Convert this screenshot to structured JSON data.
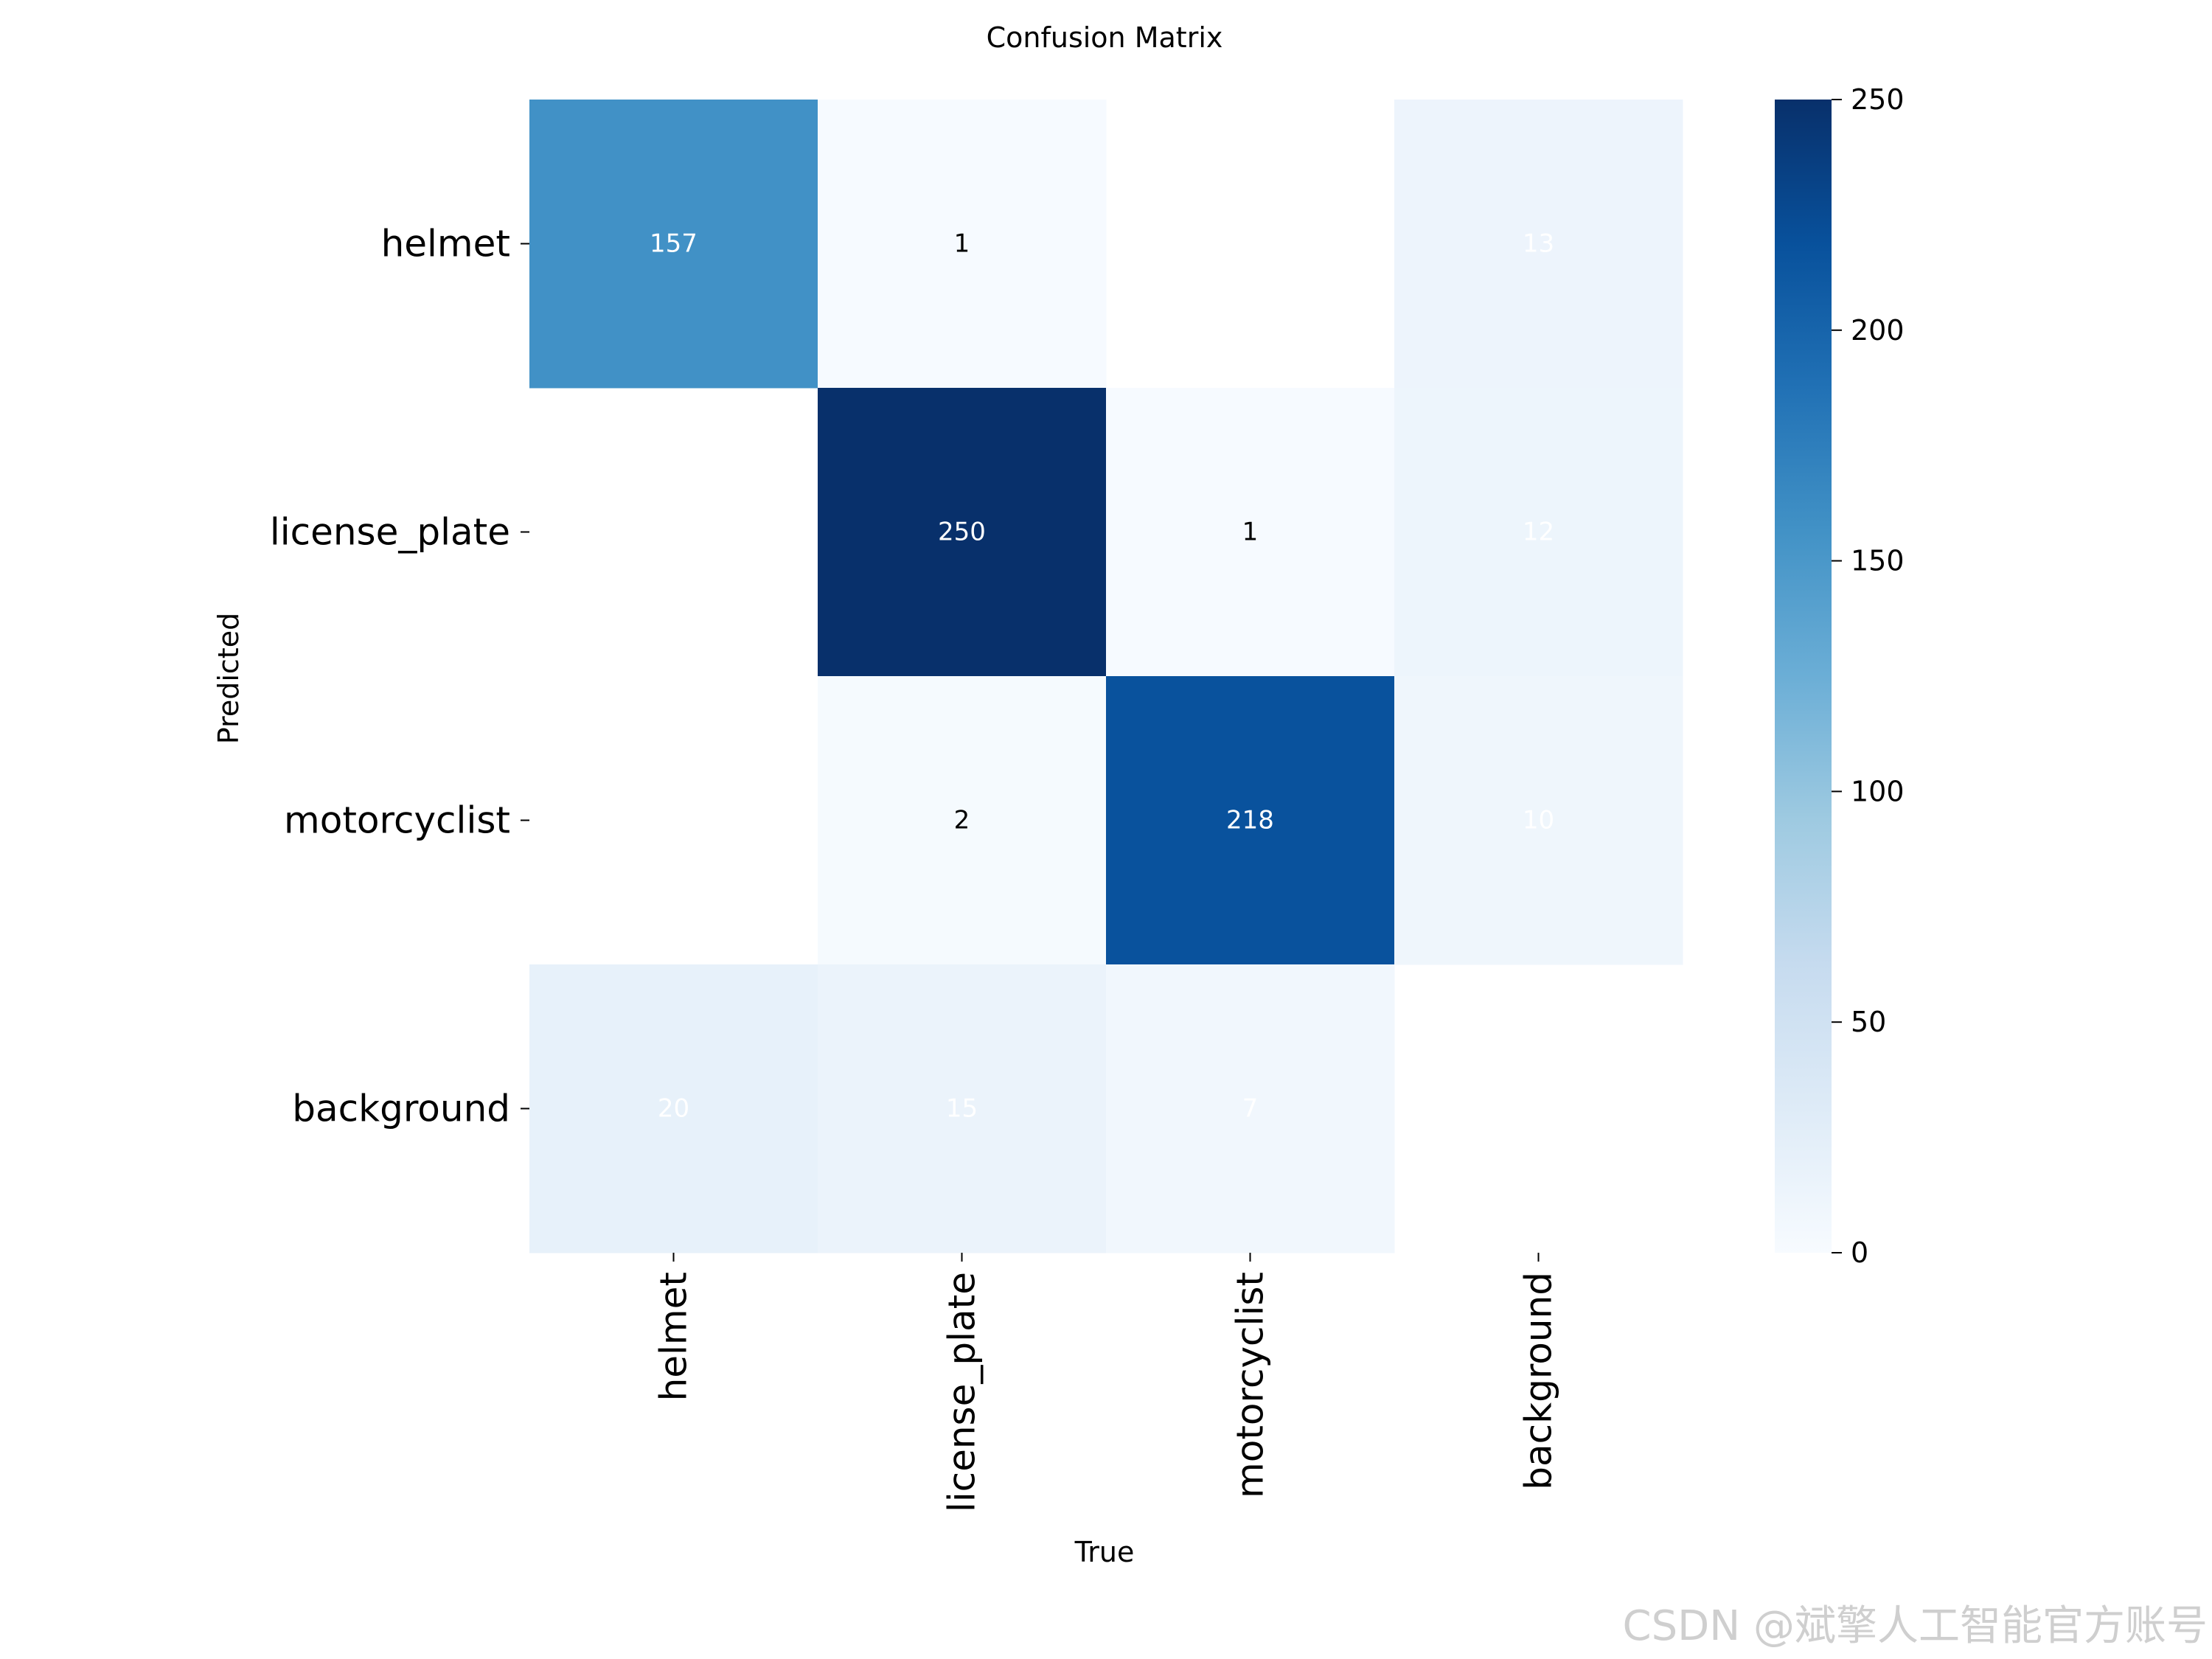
{
  "chart_data": {
    "type": "heatmap",
    "title": "Confusion Matrix",
    "xlabel": "True",
    "ylabel": "Predicted",
    "x_categories": [
      "helmet",
      "license_plate",
      "motorcyclist",
      "background"
    ],
    "y_categories": [
      "helmet",
      "license_plate",
      "motorcyclist",
      "background"
    ],
    "values": [
      [
        157,
        1,
        null,
        13
      ],
      [
        null,
        250,
        1,
        12
      ],
      [
        null,
        2,
        218,
        10
      ],
      [
        20,
        15,
        7,
        null
      ]
    ],
    "colormap": "Blues",
    "colorbar": {
      "range": [
        0,
        250
      ],
      "ticks": [
        0,
        50,
        100,
        150,
        200,
        250
      ],
      "tick_labels": [
        "0",
        "50",
        "100",
        "150",
        "200",
        "250"
      ]
    },
    "colors": [
      "#f7fbff",
      "#deebf7",
      "#c6dbef",
      "#9ecae1",
      "#6baed6",
      "#4292c6",
      "#2171b5",
      "#08519c",
      "#08306b"
    ]
  },
  "watermark": "CSDN @斌擎人工智能官方账号"
}
